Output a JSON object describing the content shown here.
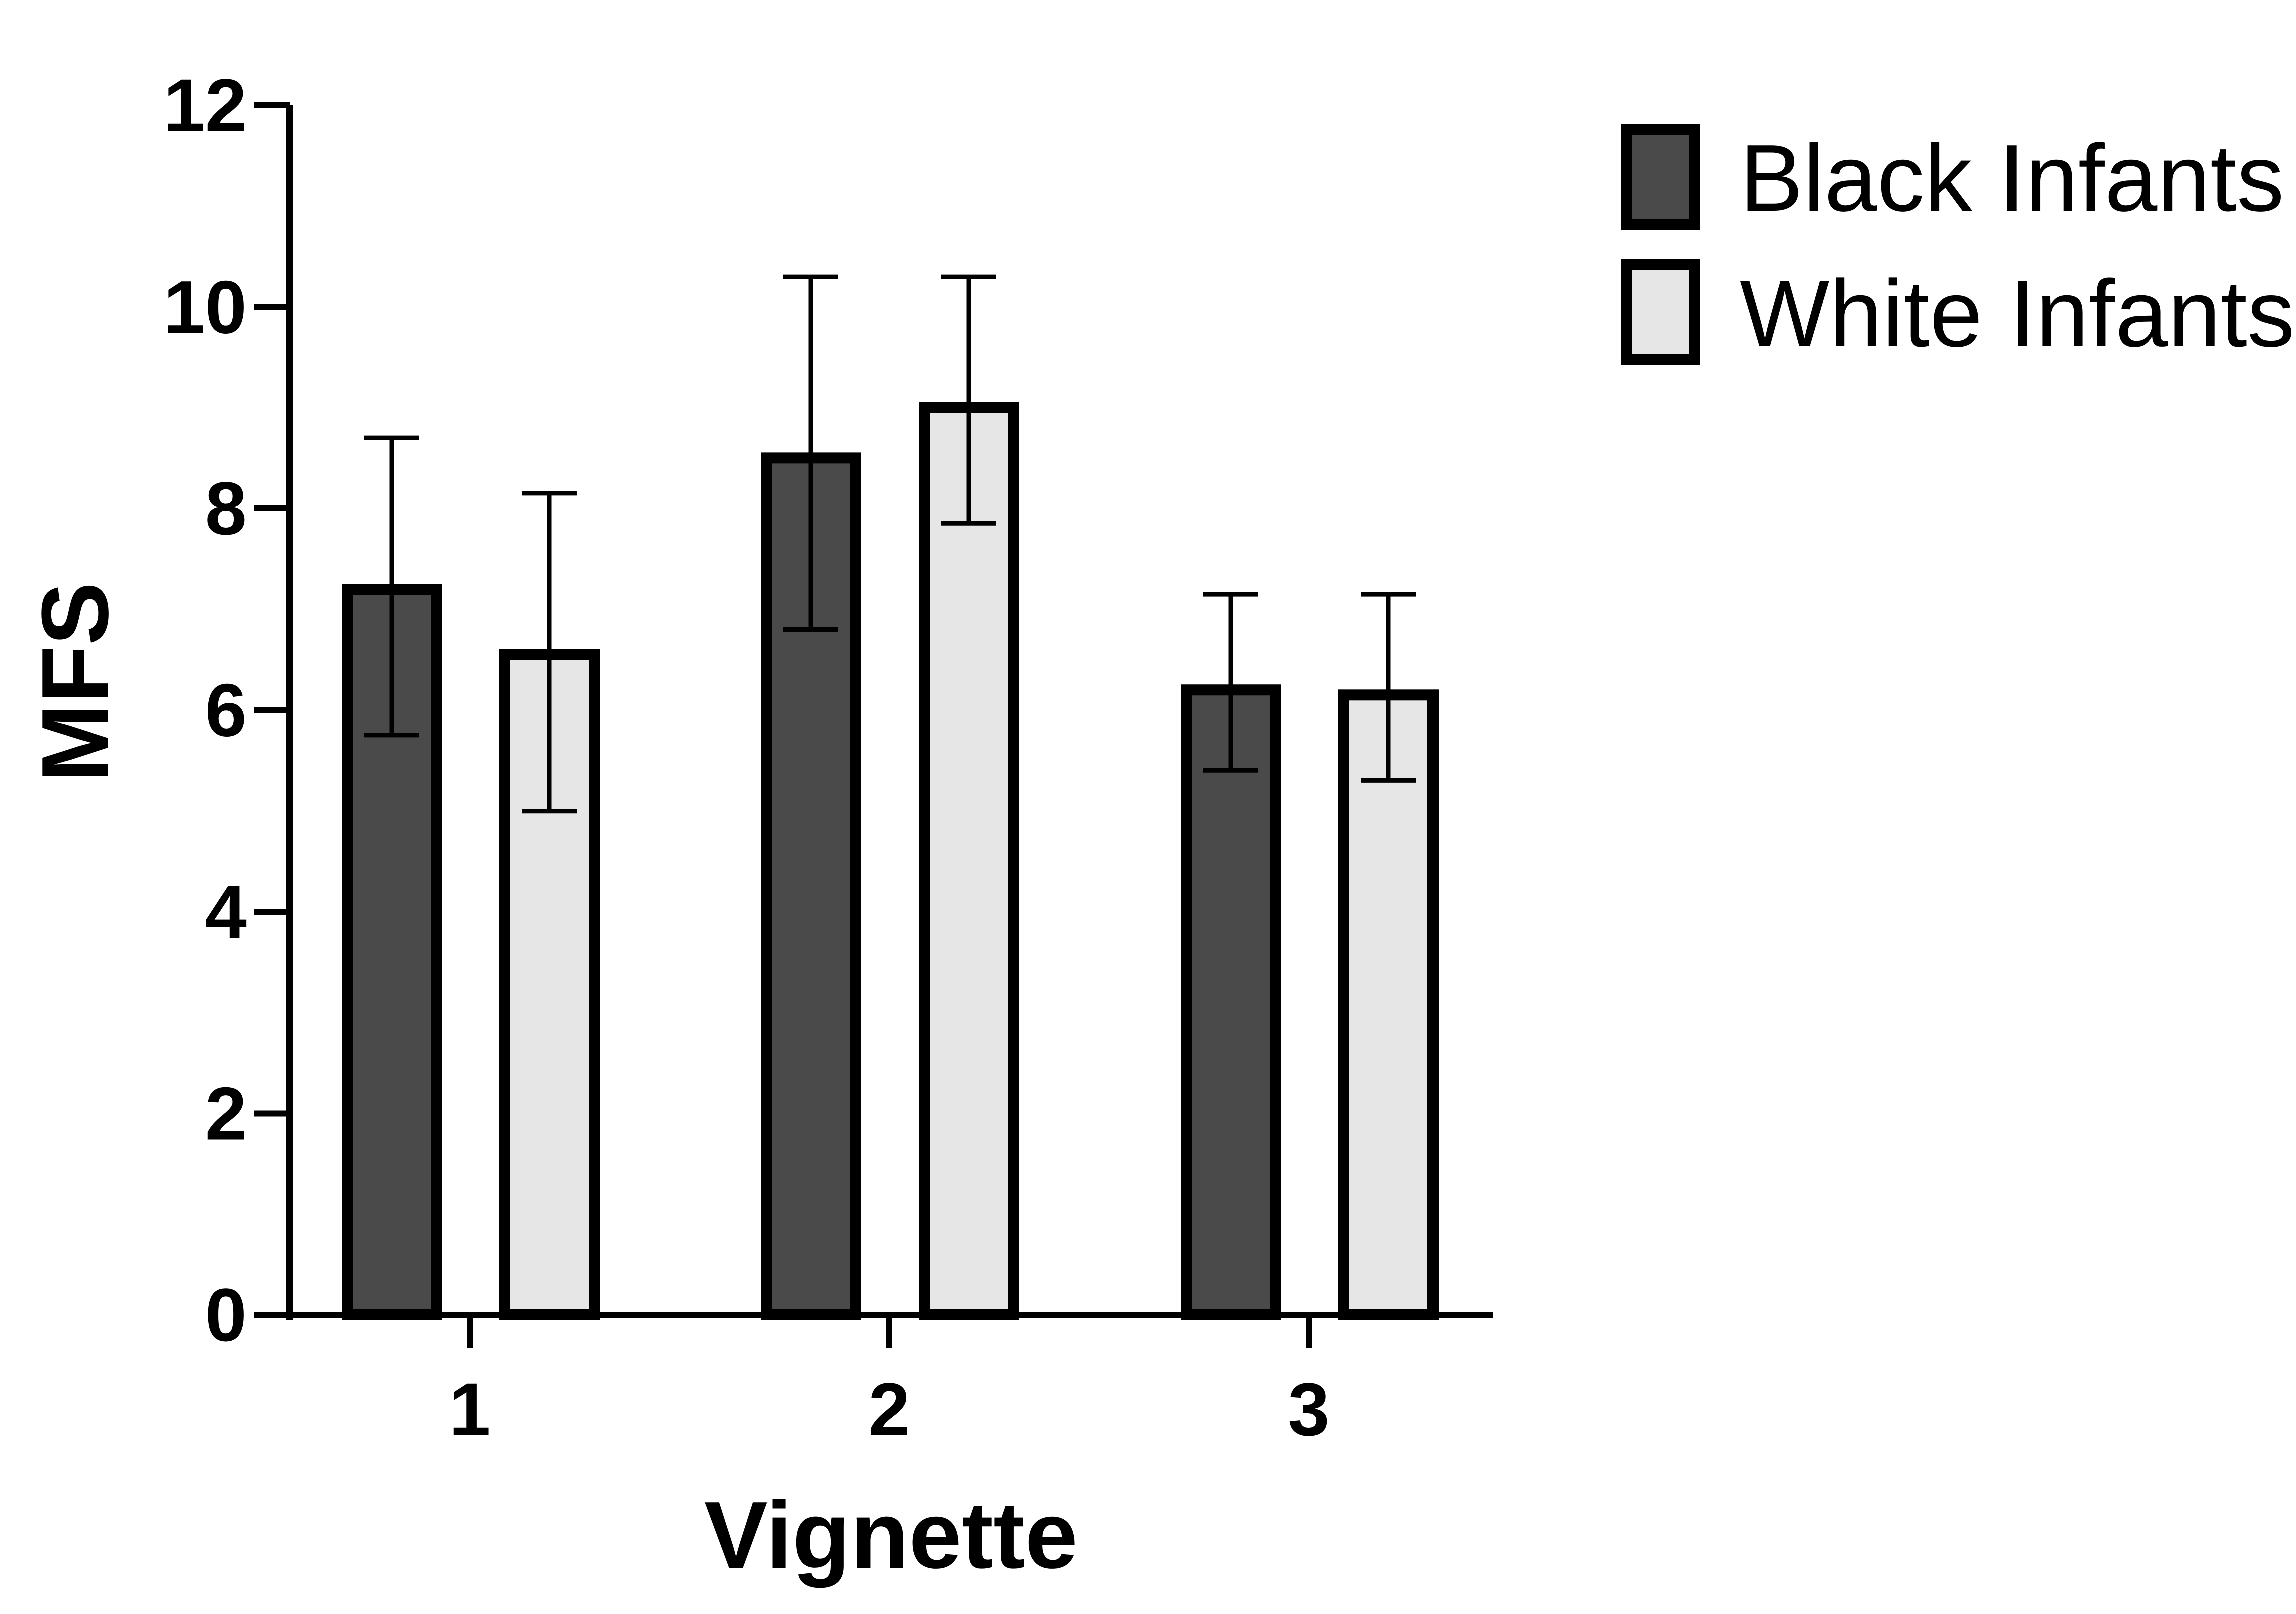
{
  "chart_data": {
    "type": "bar",
    "xlabel": "Vignette",
    "ylabel": "MFS",
    "categories": [
      "1",
      "2",
      "3"
    ],
    "ylim": [
      0,
      12
    ],
    "yticks": [
      0,
      2,
      4,
      6,
      8,
      10,
      12
    ],
    "grid": false,
    "legend_position": "top-right",
    "error_bars": true,
    "series": [
      {
        "name": "Black Infants",
        "color": "#4a4a4a",
        "values": [
          7.2,
          8.5,
          6.2
        ],
        "error_low": [
          5.75,
          6.8,
          5.4
        ],
        "error_high": [
          8.7,
          10.3,
          7.15
        ]
      },
      {
        "name": "White Infants",
        "color": "#e6e6e6",
        "values": [
          6.55,
          9.0,
          6.15
        ],
        "error_low": [
          5.0,
          7.85,
          5.3
        ],
        "error_high": [
          8.15,
          10.3,
          7.15
        ]
      }
    ]
  }
}
